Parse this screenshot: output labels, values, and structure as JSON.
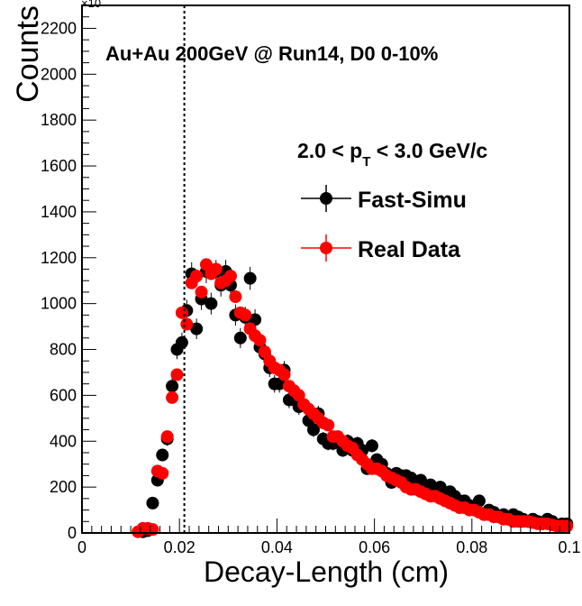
{
  "chart_data": {
    "type": "scatter",
    "title": "Au+Au 200GeV @ Run14, D0 0-10%",
    "xlabel": "Decay-Length (cm)",
    "ylabel": "Counts",
    "xlim": [
      0,
      0.1
    ],
    "ylim": [
      0,
      2300
    ],
    "xticks": [
      "0",
      "0.02",
      "0.04",
      "0.06",
      "0.08",
      "0.1"
    ],
    "xtick_values": [
      0,
      0.02,
      0.04,
      0.06,
      0.08,
      0.1
    ],
    "yticks": [
      "0",
      "200",
      "400",
      "600",
      "800",
      "1000",
      "1200",
      "1400",
      "1600",
      "1800",
      "2000",
      "2200"
    ],
    "ytick_values": [
      0,
      200,
      400,
      600,
      800,
      1000,
      1200,
      1400,
      1600,
      1800,
      2000,
      2200
    ],
    "exponent_label": "×10",
    "kinematic_label": {
      "prefix": "2.0 < p",
      "sub": "T",
      "suffix": " < 3.0 GeV/c"
    },
    "cut_line_x": 0.021,
    "grid": false,
    "legend_position": "right",
    "series": [
      {
        "name": "Fast-Simu",
        "color": "#000000",
        "x": [
          0.0125,
          0.0135,
          0.0145,
          0.0155,
          0.0165,
          0.0175,
          0.0185,
          0.0195,
          0.0205,
          0.0215,
          0.0225,
          0.0235,
          0.0245,
          0.0255,
          0.0265,
          0.0275,
          0.0285,
          0.0295,
          0.0305,
          0.0315,
          0.0325,
          0.0335,
          0.0345,
          0.0355,
          0.0365,
          0.0375,
          0.0385,
          0.0395,
          0.0405,
          0.0415,
          0.0425,
          0.0435,
          0.0445,
          0.0455,
          0.0465,
          0.0475,
          0.0485,
          0.0495,
          0.0505,
          0.0515,
          0.0525,
          0.0535,
          0.0545,
          0.0555,
          0.0565,
          0.0575,
          0.0585,
          0.0595,
          0.0605,
          0.0615,
          0.0625,
          0.0635,
          0.0645,
          0.0655,
          0.0665,
          0.0675,
          0.0685,
          0.0695,
          0.0705,
          0.0715,
          0.0725,
          0.0735,
          0.0745,
          0.0755,
          0.0765,
          0.0775,
          0.0785,
          0.0795,
          0.0805,
          0.0815,
          0.0825,
          0.0835,
          0.0845,
          0.0855,
          0.0865,
          0.0875,
          0.0885,
          0.0895,
          0.0905,
          0.0915,
          0.0925,
          0.0935,
          0.0945,
          0.0955,
          0.0965,
          0.0975,
          0.0985,
          0.0995
        ],
        "y": [
          5,
          10,
          130,
          230,
          340,
          410,
          640,
          800,
          830,
          970,
          1130,
          890,
          1020,
          1140,
          1000,
          1140,
          1080,
          1140,
          1080,
          950,
          850,
          940,
          1110,
          930,
          810,
          780,
          720,
          650,
          650,
          710,
          580,
          580,
          550,
          560,
          490,
          450,
          520,
          410,
          390,
          390,
          400,
          360,
          400,
          360,
          390,
          360,
          280,
          380,
          320,
          300,
          260,
          220,
          260,
          250,
          250,
          240,
          210,
          230,
          190,
          210,
          180,
          200,
          160,
          180,
          160,
          140,
          140,
          120,
          100,
          140,
          80,
          100,
          90,
          70,
          80,
          60,
          80,
          70,
          60,
          50,
          60,
          50,
          40,
          60,
          50,
          30,
          40,
          40
        ]
      },
      {
        "name": "Real Data",
        "color": "#ff0000",
        "x": [
          0.0115,
          0.0125,
          0.0135,
          0.0145,
          0.0155,
          0.0165,
          0.0175,
          0.0185,
          0.0195,
          0.0205,
          0.0215,
          0.0225,
          0.0235,
          0.0245,
          0.0255,
          0.0265,
          0.0275,
          0.0285,
          0.0295,
          0.0305,
          0.0315,
          0.0325,
          0.0335,
          0.0345,
          0.0355,
          0.0365,
          0.0375,
          0.0385,
          0.0395,
          0.0405,
          0.0415,
          0.0425,
          0.0435,
          0.0445,
          0.0455,
          0.0465,
          0.0475,
          0.0485,
          0.0495,
          0.0505,
          0.0515,
          0.0525,
          0.0535,
          0.0545,
          0.0555,
          0.0565,
          0.0575,
          0.0585,
          0.0595,
          0.0605,
          0.0615,
          0.0625,
          0.0635,
          0.0645,
          0.0655,
          0.0665,
          0.0675,
          0.0685,
          0.0695,
          0.0705,
          0.0715,
          0.0725,
          0.0735,
          0.0745,
          0.0755,
          0.0765,
          0.0775,
          0.0785,
          0.0795,
          0.0805,
          0.0815,
          0.0825,
          0.0835,
          0.0845,
          0.0855,
          0.0865,
          0.0875,
          0.0885,
          0.0895,
          0.0905,
          0.0915,
          0.0925,
          0.0935,
          0.0945,
          0.0955,
          0.0965,
          0.0975,
          0.0985,
          0.0995
        ],
        "y": [
          5,
          20,
          20,
          15,
          270,
          260,
          420,
          590,
          690,
          960,
          910,
          1090,
          1120,
          1050,
          1170,
          1130,
          1150,
          1090,
          1100,
          1120,
          1030,
          960,
          950,
          890,
          860,
          840,
          790,
          750,
          720,
          710,
          690,
          640,
          620,
          600,
          560,
          540,
          520,
          500,
          480,
          470,
          420,
          420,
          400,
          380,
          370,
          340,
          320,
          300,
          280,
          280,
          270,
          250,
          240,
          230,
          220,
          200,
          190,
          190,
          180,
          170,
          160,
          160,
          150,
          140,
          130,
          120,
          110,
          110,
          100,
          100,
          90,
          80,
          80,
          70,
          70,
          60,
          60,
          50,
          50,
          50,
          50,
          45,
          40,
          40,
          40,
          35,
          30,
          30,
          30
        ]
      }
    ]
  }
}
